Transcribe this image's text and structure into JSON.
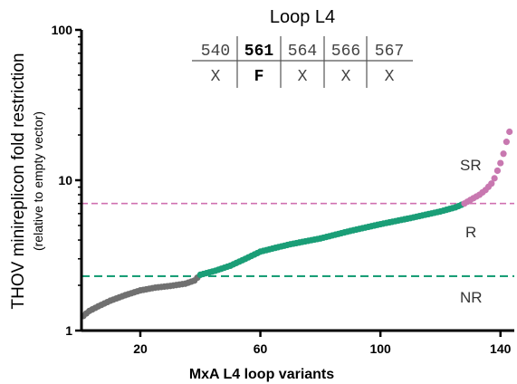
{
  "chart_data": {
    "type": "scatter",
    "xlabel": "MxA L4 loop variants",
    "ylabel": "THOV minireplicon fold restriction",
    "ylabel_sub": "(relative to empty vector)",
    "x_ticks": [
      20,
      60,
      100,
      140
    ],
    "y_ticks": [
      1,
      10,
      100
    ],
    "xlim": [
      1,
      144
    ],
    "ylim": [
      1,
      100
    ],
    "y_scale": "log",
    "thresholds": [
      {
        "y": 2.3,
        "color": "#1a9e77",
        "style": "dashed"
      },
      {
        "y": 7.0,
        "color": "#d070b0",
        "style": "dashed"
      }
    ],
    "regions": [
      {
        "label": "SR",
        "y": 13
      },
      {
        "label": "R",
        "y": 4.0
      },
      {
        "label": "NR",
        "y": 1.6
      }
    ],
    "colors": {
      "NR": "#707070",
      "R": "#1a9e77",
      "SR": "#c878b0"
    },
    "anchors": [
      [
        1,
        1.25
      ],
      [
        3,
        1.35
      ],
      [
        6,
        1.45
      ],
      [
        10,
        1.58
      ],
      [
        15,
        1.72
      ],
      [
        20,
        1.85
      ],
      [
        25,
        1.93
      ],
      [
        30,
        1.98
      ],
      [
        35,
        2.05
      ],
      [
        38,
        2.15
      ],
      [
        40,
        2.35
      ],
      [
        45,
        2.5
      ],
      [
        50,
        2.7
      ],
      [
        55,
        3.0
      ],
      [
        60,
        3.35
      ],
      [
        65,
        3.55
      ],
      [
        70,
        3.75
      ],
      [
        80,
        4.1
      ],
      [
        90,
        4.6
      ],
      [
        100,
        5.1
      ],
      [
        110,
        5.6
      ],
      [
        120,
        6.2
      ],
      [
        125,
        6.6
      ],
      [
        128,
        7.0
      ],
      [
        130,
        7.4
      ],
      [
        133,
        8.0
      ],
      [
        135,
        8.6
      ],
      [
        137,
        9.5
      ],
      [
        138,
        10.3
      ],
      [
        140,
        13
      ],
      [
        141,
        15
      ],
      [
        142,
        18
      ],
      [
        143,
        21
      ]
    ],
    "n_points": 143
  },
  "inset": {
    "title": "Loop L4",
    "positions": [
      "540",
      "561",
      "564",
      "566",
      "567"
    ],
    "residues": [
      "X",
      "F",
      "X",
      "X",
      "X"
    ],
    "highlight_index": 1
  }
}
